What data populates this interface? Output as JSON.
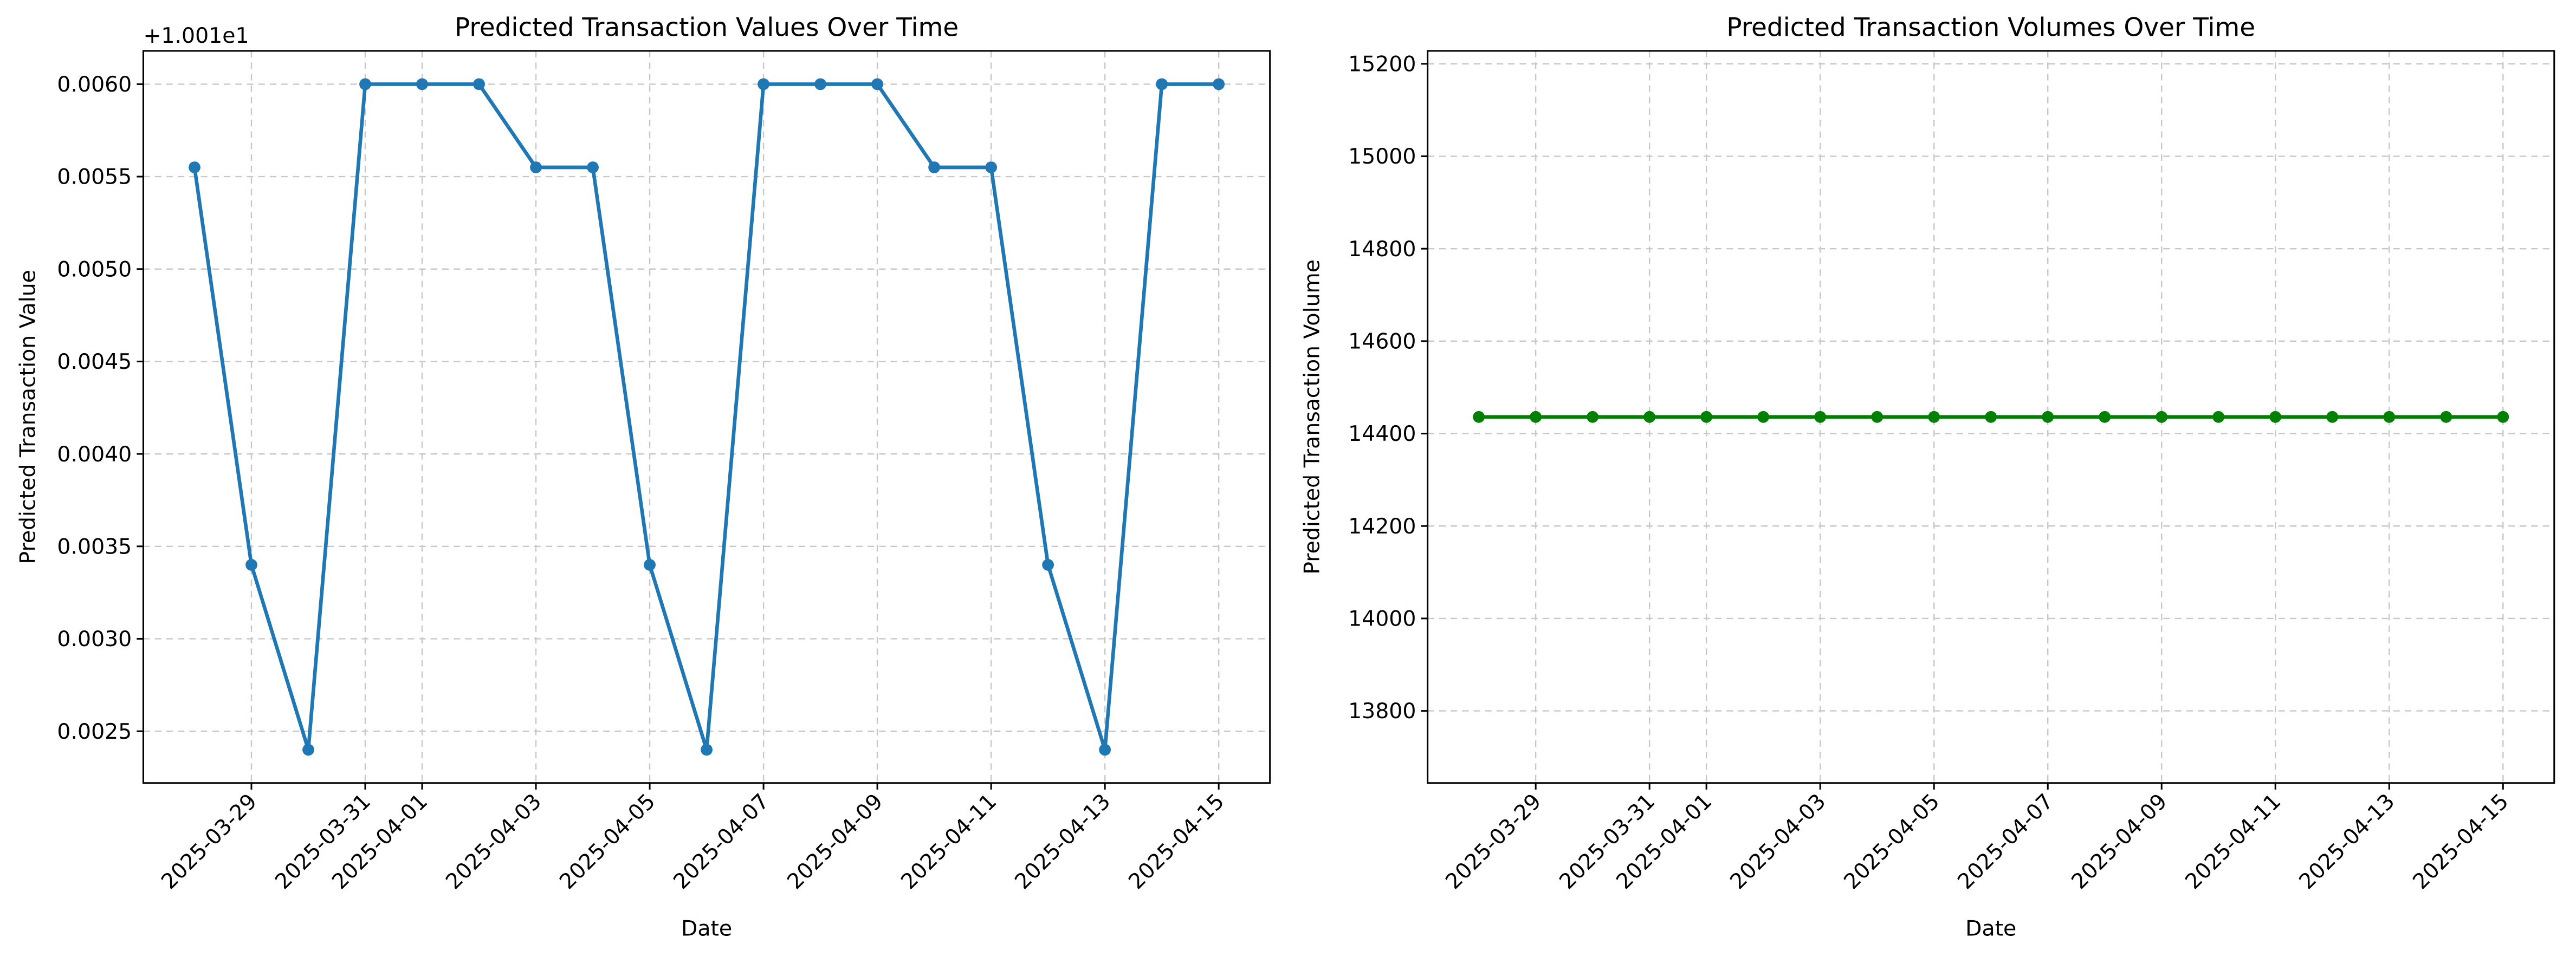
{
  "chart_data": [
    {
      "type": "line",
      "title": "Predicted Transaction Values Over Time",
      "xlabel": "Date",
      "ylabel": "Predicted Transaction Value",
      "offset_text": "+1.001e1",
      "x": [
        "2025-03-28",
        "2025-03-29",
        "2025-03-30",
        "2025-03-31",
        "2025-04-01",
        "2025-04-02",
        "2025-04-03",
        "2025-04-04",
        "2025-04-05",
        "2025-04-06",
        "2025-04-07",
        "2025-04-08",
        "2025-04-09",
        "2025-04-10",
        "2025-04-11",
        "2025-04-12",
        "2025-04-13",
        "2025-04-14",
        "2025-04-15"
      ],
      "values": [
        0.00555,
        0.0034,
        0.0024,
        0.006,
        0.006,
        0.006,
        0.00555,
        0.00555,
        0.0034,
        0.0024,
        0.006,
        0.006,
        0.006,
        0.00555,
        0.00555,
        0.0034,
        0.0024,
        0.006,
        0.006
      ],
      "color": "#1f77b4",
      "xlim": [
        "2025-03-27T02:24:00Z",
        "2025-04-15T21:36:00Z"
      ],
      "xticks": [
        "2025-03-29",
        "2025-03-31",
        "2025-04-01",
        "2025-04-03",
        "2025-04-05",
        "2025-04-07",
        "2025-04-09",
        "2025-04-11",
        "2025-04-13",
        "2025-04-15"
      ],
      "ylim": [
        0.00222,
        0.00618
      ],
      "yticks": [
        {
          "value": 0.0025,
          "label": "0.0025"
        },
        {
          "value": 0.003,
          "label": "0.0030"
        },
        {
          "value": 0.0035,
          "label": "0.0035"
        },
        {
          "value": 0.004,
          "label": "0.0040"
        },
        {
          "value": 0.0045,
          "label": "0.0045"
        },
        {
          "value": 0.005,
          "label": "0.0050"
        },
        {
          "value": 0.0055,
          "label": "0.0055"
        },
        {
          "value": 0.006,
          "label": "0.0060"
        }
      ],
      "grid": true
    },
    {
      "type": "line",
      "title": "Predicted Transaction Volumes Over Time",
      "xlabel": "Date",
      "ylabel": "Predicted Transaction Volume",
      "x": [
        "2025-03-28",
        "2025-03-29",
        "2025-03-30",
        "2025-03-31",
        "2025-04-01",
        "2025-04-02",
        "2025-04-03",
        "2025-04-04",
        "2025-04-05",
        "2025-04-06",
        "2025-04-07",
        "2025-04-08",
        "2025-04-09",
        "2025-04-10",
        "2025-04-11",
        "2025-04-12",
        "2025-04-13",
        "2025-04-14",
        "2025-04-15"
      ],
      "values": [
        14436,
        14436,
        14436,
        14436,
        14436,
        14436,
        14436,
        14436,
        14436,
        14436,
        14436,
        14436,
        14436,
        14436,
        14436,
        14436,
        14436,
        14436,
        14436
      ],
      "color": "#008000",
      "xlim": [
        "2025-03-27T02:24:00Z",
        "2025-04-15T21:36:00Z"
      ],
      "xticks": [
        "2025-03-29",
        "2025-03-31",
        "2025-04-01",
        "2025-04-03",
        "2025-04-05",
        "2025-04-07",
        "2025-04-09",
        "2025-04-11",
        "2025-04-13",
        "2025-04-15"
      ],
      "ylim": [
        13644,
        15228
      ],
      "yticks": [
        13800,
        14000,
        14200,
        14400,
        14600,
        14800,
        15000,
        15200
      ],
      "grid": true
    }
  ]
}
